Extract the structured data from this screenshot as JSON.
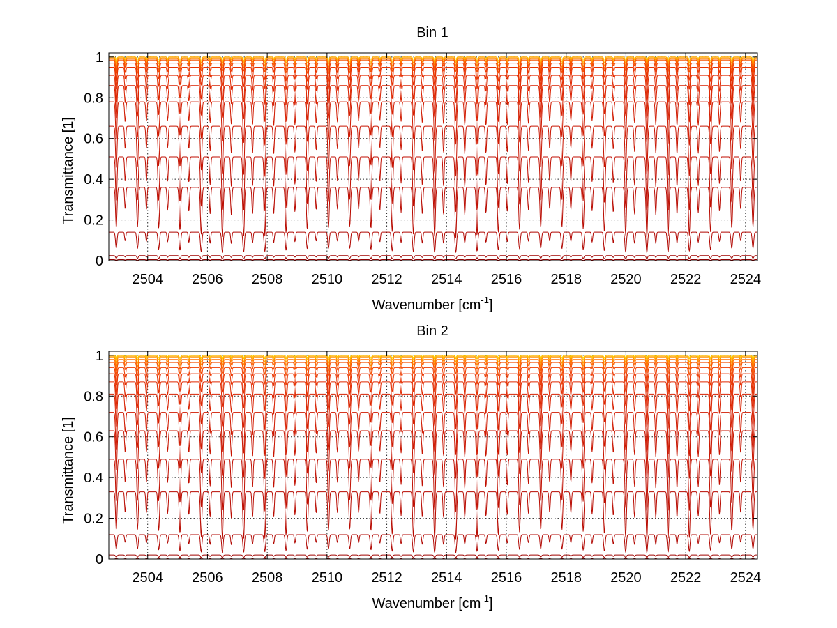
{
  "chart_data": [
    {
      "type": "line",
      "title": "Bin 1",
      "xlabel": "Wavenumber [cm",
      "xlabel_sup": "-1",
      "xlabel_tail": "]",
      "ylabel": "Transmittance [1]",
      "xlim": [
        2502.7,
        2524.4
      ],
      "ylim": [
        0,
        1.02
      ],
      "grid": true,
      "legend": "none",
      "x_ticks": [
        "2504",
        "2506",
        "2508",
        "2510",
        "2512",
        "2514",
        "2516",
        "2518",
        "2520",
        "2522",
        "2524"
      ],
      "y_ticks": [
        "0",
        "0.2",
        "0.4",
        "0.6",
        "0.8",
        "1"
      ],
      "line_spacing_cm1": 0.71,
      "series": [
        {
          "baseline": 1.0,
          "dip_depth": 0.01,
          "color": "#ffd200"
        },
        {
          "baseline": 1.0,
          "dip_depth": 0.02,
          "color": "#ffbe00"
        },
        {
          "baseline": 1.0,
          "dip_depth": 0.03,
          "color": "#ffa500"
        },
        {
          "baseline": 0.995,
          "dip_depth": 0.04,
          "color": "#ff8c00"
        },
        {
          "baseline": 0.99,
          "dip_depth": 0.05,
          "color": "#ff6e00"
        },
        {
          "baseline": 0.985,
          "dip_depth": 0.06,
          "color": "#f55000"
        },
        {
          "baseline": 0.97,
          "dip_depth": 0.08,
          "color": "#ee3c00"
        },
        {
          "baseline": 0.95,
          "dip_depth": 0.1,
          "color": "#e63000"
        },
        {
          "baseline": 0.91,
          "dip_depth": 0.13,
          "color": "#e02800"
        },
        {
          "baseline": 0.86,
          "dip_depth": 0.16,
          "color": "#d82000"
        },
        {
          "baseline": 0.78,
          "dip_depth": 0.19,
          "color": "#d01a00"
        },
        {
          "baseline": 0.66,
          "dip_depth": 0.22,
          "color": "#c81400"
        },
        {
          "baseline": 0.51,
          "dip_depth": 0.24,
          "color": "#c00e00"
        },
        {
          "baseline": 0.36,
          "dip_depth": 0.22,
          "color": "#b80a00"
        },
        {
          "baseline": 0.14,
          "dip_depth": 0.09,
          "color": "#b00600"
        },
        {
          "baseline": 0.025,
          "dip_depth": 0.015,
          "color": "#a00400"
        },
        {
          "baseline": 0.005,
          "dip_depth": 0.004,
          "color": "#900000"
        },
        {
          "baseline": 0.0,
          "dip_depth": 0.0,
          "color": "#800000"
        }
      ]
    },
    {
      "type": "line",
      "title": "Bin 2",
      "xlabel": "Wavenumber [cm",
      "xlabel_sup": "-1",
      "xlabel_tail": "]",
      "ylabel": "Transmittance [1]",
      "xlim": [
        2502.7,
        2524.4
      ],
      "ylim": [
        0,
        1.02
      ],
      "grid": true,
      "legend": "none",
      "x_ticks": [
        "2504",
        "2506",
        "2508",
        "2510",
        "2512",
        "2514",
        "2516",
        "2518",
        "2520",
        "2522",
        "2524"
      ],
      "y_ticks": [
        "0",
        "0.2",
        "0.4",
        "0.6",
        "0.8",
        "1"
      ],
      "line_spacing_cm1": 0.71,
      "series": [
        {
          "baseline": 1.0,
          "dip_depth": 0.01,
          "color": "#ffd200"
        },
        {
          "baseline": 1.0,
          "dip_depth": 0.02,
          "color": "#ffbe00"
        },
        {
          "baseline": 0.995,
          "dip_depth": 0.03,
          "color": "#ffa500"
        },
        {
          "baseline": 0.99,
          "dip_depth": 0.04,
          "color": "#ff8c00"
        },
        {
          "baseline": 0.98,
          "dip_depth": 0.05,
          "color": "#ff6e00"
        },
        {
          "baseline": 0.965,
          "dip_depth": 0.06,
          "color": "#f55000"
        },
        {
          "baseline": 0.94,
          "dip_depth": 0.08,
          "color": "#ee3c00"
        },
        {
          "baseline": 0.91,
          "dip_depth": 0.1,
          "color": "#e63000"
        },
        {
          "baseline": 0.87,
          "dip_depth": 0.13,
          "color": "#e02800"
        },
        {
          "baseline": 0.81,
          "dip_depth": 0.16,
          "color": "#d82000"
        },
        {
          "baseline": 0.72,
          "dip_depth": 0.19,
          "color": "#d01a00"
        },
        {
          "baseline": 0.63,
          "dip_depth": 0.21,
          "color": "#c81400"
        },
        {
          "baseline": 0.49,
          "dip_depth": 0.23,
          "color": "#c00e00"
        },
        {
          "baseline": 0.33,
          "dip_depth": 0.21,
          "color": "#b80a00"
        },
        {
          "baseline": 0.12,
          "dip_depth": 0.08,
          "color": "#b00600"
        },
        {
          "baseline": 0.02,
          "dip_depth": 0.012,
          "color": "#a00400"
        },
        {
          "baseline": 0.005,
          "dip_depth": 0.004,
          "color": "#900000"
        },
        {
          "baseline": 0.0,
          "dip_depth": 0.0,
          "color": "#800000"
        }
      ]
    }
  ]
}
